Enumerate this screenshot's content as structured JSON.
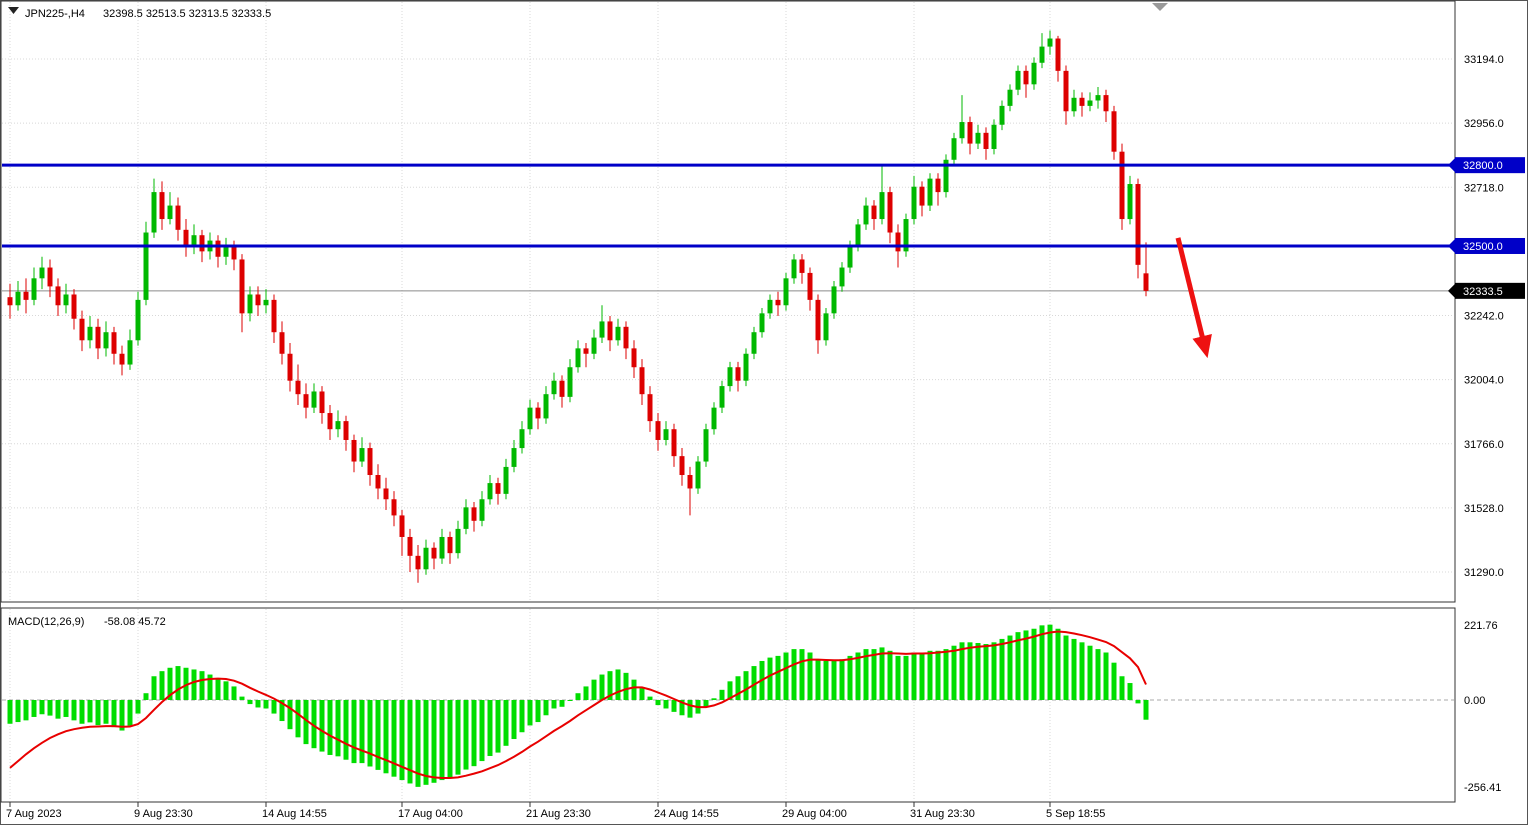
{
  "header": {
    "symbol": "JPN225-,H4",
    "ohlc": "32398.5 32513.5 32313.5 32333.5"
  },
  "macd": {
    "name": "MACD(12,26,9)",
    "values": "-58.08 45.72"
  },
  "colors": {
    "candle_up": "#00b800",
    "candle_down": "#dd0000",
    "macd_histogram": "#00dd00",
    "macd_signal": "#e80000",
    "level_line": "#0000c8",
    "current_price_bg": "#000000",
    "arrow": "#ee1111",
    "grid": "#d8d8d8",
    "current_price_line": "#8a8a8a",
    "shift_marker": "#999999"
  },
  "chart_data": [
    {
      "type": "candlestick",
      "title": "JPN225-,H4",
      "open": "32398.5",
      "high": "32513.5",
      "low": "32313.5",
      "close": "32333.5",
      "y_tick_labels": [
        "33194.0",
        "32956.0",
        "32718.0",
        "32242.0",
        "32004.0",
        "31766.0",
        "31528.0",
        "31290.0"
      ],
      "hlines": [
        {
          "value": 32800.0,
          "label": "32800.0"
        },
        {
          "value": 32500.0,
          "label": "32500.0"
        }
      ],
      "current_price": {
        "value": 32333.5,
        "label": "32333.5"
      },
      "x_labels": [
        {
          "bar": 0,
          "label": "7 Aug 2023"
        },
        {
          "bar": 16,
          "label": "9 Aug 23:30"
        },
        {
          "bar": 32,
          "label": "14 Aug 14:55"
        },
        {
          "bar": 49,
          "label": "17 Aug 04:00"
        },
        {
          "bar": 65,
          "label": "21 Aug 23:30"
        },
        {
          "bar": 81,
          "label": "24 Aug 14:55"
        },
        {
          "bar": 97,
          "label": "29 Aug 04:00"
        },
        {
          "bar": 113,
          "label": "31 Aug 23:30"
        },
        {
          "bar": 130,
          "label": "5 Sep 18:55"
        }
      ],
      "annotation_arrow": {
        "from_bar": 146,
        "from_price": 32530,
        "to_bar": 149.5,
        "to_price": 32107
      },
      "candles": [
        [
          32310,
          32360,
          32230,
          32280
        ],
        [
          32280,
          32370,
          32260,
          32330
        ],
        [
          32330,
          32380,
          32250,
          32300
        ],
        [
          32300,
          32420,
          32280,
          32380
        ],
        [
          32380,
          32460,
          32340,
          32420
        ],
        [
          32420,
          32450,
          32310,
          32350
        ],
        [
          32350,
          32380,
          32240,
          32280
        ],
        [
          32280,
          32360,
          32250,
          32320
        ],
        [
          32320,
          32340,
          32190,
          32230
        ],
        [
          32230,
          32260,
          32110,
          32150
        ],
        [
          32150,
          32240,
          32120,
          32200
        ],
        [
          32200,
          32230,
          32080,
          32120
        ],
        [
          32120,
          32220,
          32090,
          32180
        ],
        [
          32180,
          32200,
          32060,
          32100
        ],
        [
          32100,
          32130,
          32020,
          32060
        ],
        [
          32060,
          32190,
          32040,
          32150
        ],
        [
          32150,
          32330,
          32130,
          32300
        ],
        [
          32300,
          32590,
          32280,
          32550
        ],
        [
          32550,
          32750,
          32530,
          32700
        ],
        [
          32700,
          32740,
          32560,
          32600
        ],
        [
          32600,
          32700,
          32580,
          32650
        ],
        [
          32650,
          32680,
          32520,
          32560
        ],
        [
          32560,
          32600,
          32460,
          32500
        ],
        [
          32500,
          32580,
          32470,
          32540
        ],
        [
          32540,
          32560,
          32440,
          32480
        ],
        [
          32480,
          32550,
          32450,
          32520
        ],
        [
          32520,
          32540,
          32420,
          32460
        ],
        [
          32460,
          32530,
          32430,
          32500
        ],
        [
          32500,
          32520,
          32410,
          32450
        ],
        [
          32450,
          32470,
          32180,
          32250
        ],
        [
          32250,
          32350,
          32220,
          32320
        ],
        [
          32320,
          32350,
          32240,
          32280
        ],
        [
          32280,
          32340,
          32250,
          32300
        ],
        [
          32300,
          32320,
          32140,
          32180
        ],
        [
          32180,
          32220,
          32060,
          32100
        ],
        [
          32100,
          32140,
          31960,
          32000
        ],
        [
          32000,
          32060,
          31910,
          31950
        ],
        [
          31950,
          31990,
          31860,
          31900
        ],
        [
          31900,
          31990,
          31880,
          31960
        ],
        [
          31960,
          31980,
          31840,
          31880
        ],
        [
          31880,
          31910,
          31780,
          31820
        ],
        [
          31820,
          31890,
          31790,
          31850
        ],
        [
          31850,
          31870,
          31740,
          31780
        ],
        [
          31780,
          31800,
          31660,
          31700
        ],
        [
          31700,
          31790,
          31680,
          31750
        ],
        [
          31750,
          31770,
          31610,
          31650
        ],
        [
          31650,
          31690,
          31560,
          31600
        ],
        [
          31600,
          31640,
          31520,
          31560
        ],
        [
          31560,
          31590,
          31460,
          31500
        ],
        [
          31500,
          31520,
          31350,
          31420
        ],
        [
          31420,
          31450,
          31290,
          31350
        ],
        [
          31350,
          31390,
          31250,
          31300
        ],
        [
          31300,
          31410,
          31280,
          31380
        ],
        [
          31380,
          31400,
          31300,
          31340
        ],
        [
          31340,
          31450,
          31320,
          31420
        ],
        [
          31420,
          31440,
          31320,
          31360
        ],
        [
          31360,
          31480,
          31340,
          31450
        ],
        [
          31450,
          31560,
          31430,
          31530
        ],
        [
          31530,
          31550,
          31440,
          31480
        ],
        [
          31480,
          31590,
          31460,
          31560
        ],
        [
          31560,
          31650,
          31540,
          31620
        ],
        [
          31620,
          31640,
          31540,
          31580
        ],
        [
          31580,
          31710,
          31560,
          31680
        ],
        [
          31680,
          31780,
          31660,
          31750
        ],
        [
          31750,
          31850,
          31730,
          31820
        ],
        [
          31820,
          31930,
          31800,
          31900
        ],
        [
          31900,
          31920,
          31820,
          31860
        ],
        [
          31860,
          31980,
          31840,
          31950
        ],
        [
          31950,
          32030,
          31930,
          32000
        ],
        [
          32000,
          32020,
          31900,
          31940
        ],
        [
          31940,
          32080,
          31920,
          32050
        ],
        [
          32050,
          32150,
          32030,
          32120
        ],
        [
          32120,
          32140,
          32050,
          32100
        ],
        [
          32100,
          32190,
          32080,
          32160
        ],
        [
          32160,
          32280,
          32140,
          32220
        ],
        [
          32220,
          32240,
          32110,
          32150
        ],
        [
          32150,
          32230,
          32130,
          32200
        ],
        [
          32200,
          32220,
          32080,
          32120
        ],
        [
          32120,
          32150,
          32010,
          32050
        ],
        [
          32050,
          32080,
          31910,
          31950
        ],
        [
          31950,
          31980,
          31810,
          31850
        ],
        [
          31850,
          31880,
          31740,
          31780
        ],
        [
          31780,
          31850,
          31760,
          31820
        ],
        [
          31820,
          31840,
          31680,
          31720
        ],
        [
          31720,
          31750,
          31610,
          31650
        ],
        [
          31650,
          31680,
          31500,
          31600
        ],
        [
          31600,
          31720,
          31580,
          31700
        ],
        [
          31700,
          31840,
          31680,
          31820
        ],
        [
          31820,
          31920,
          31800,
          31900
        ],
        [
          31900,
          32000,
          31880,
          31980
        ],
        [
          31980,
          32070,
          31960,
          32050
        ],
        [
          32050,
          32070,
          31960,
          32000
        ],
        [
          32000,
          32120,
          31980,
          32100
        ],
        [
          32100,
          32200,
          32080,
          32180
        ],
        [
          32180,
          32270,
          32160,
          32250
        ],
        [
          32250,
          32320,
          32230,
          32300
        ],
        [
          32300,
          32330,
          32240,
          32280
        ],
        [
          32280,
          32400,
          32260,
          32380
        ],
        [
          32380,
          32470,
          32360,
          32450
        ],
        [
          32450,
          32470,
          32360,
          32400
        ],
        [
          32400,
          32420,
          32260,
          32300
        ],
        [
          32300,
          32320,
          32100,
          32150
        ],
        [
          32150,
          32270,
          32130,
          32250
        ],
        [
          32250,
          32370,
          32230,
          32350
        ],
        [
          32350,
          32440,
          32330,
          32420
        ],
        [
          32420,
          32520,
          32400,
          32500
        ],
        [
          32500,
          32600,
          32480,
          32580
        ],
        [
          32580,
          32680,
          32560,
          32650
        ],
        [
          32650,
          32670,
          32560,
          32600
        ],
        [
          32600,
          32800,
          32580,
          32700
        ],
        [
          32700,
          32720,
          32510,
          32550
        ],
        [
          32550,
          32580,
          32420,
          32480
        ],
        [
          32480,
          32620,
          32460,
          32600
        ],
        [
          32600,
          32760,
          32580,
          32720
        ],
        [
          32720,
          32740,
          32610,
          32650
        ],
        [
          32650,
          32770,
          32630,
          32750
        ],
        [
          32750,
          32770,
          32650,
          32700
        ],
        [
          32700,
          32840,
          32680,
          32820
        ],
        [
          32820,
          32920,
          32800,
          32900
        ],
        [
          32900,
          33060,
          32880,
          32960
        ],
        [
          32960,
          32980,
          32840,
          32880
        ],
        [
          32880,
          32950,
          32860,
          32920
        ],
        [
          32920,
          32940,
          32820,
          32860
        ],
        [
          32860,
          32970,
          32840,
          32950
        ],
        [
          32950,
          33040,
          32930,
          33020
        ],
        [
          33020,
          33100,
          33000,
          33080
        ],
        [
          33080,
          33170,
          33060,
          33150
        ],
        [
          33150,
          33170,
          33050,
          33100
        ],
        [
          33100,
          33200,
          33080,
          33180
        ],
        [
          33180,
          33290,
          33160,
          33240
        ],
        [
          33240,
          33300,
          33210,
          33270
        ],
        [
          33270,
          33280,
          33110,
          33150
        ],
        [
          33150,
          33170,
          32950,
          33000
        ],
        [
          33000,
          33080,
          32980,
          33050
        ],
        [
          33050,
          33070,
          32980,
          33020
        ],
        [
          33020,
          33070,
          33000,
          33040
        ],
        [
          33040,
          33090,
          33010,
          33060
        ],
        [
          33060,
          33080,
          32960,
          33000
        ],
        [
          33000,
          33020,
          32820,
          32850
        ],
        [
          32850,
          32880,
          32560,
          32600
        ],
        [
          32600,
          32760,
          32580,
          32730
        ],
        [
          32730,
          32750,
          32380,
          32430
        ],
        [
          32398.5,
          32513.5,
          32313.5,
          32333.5
        ]
      ]
    },
    {
      "type": "bar",
      "title": "MACD(12,26,9)",
      "current_values": {
        "macd": -58.08,
        "signal": 45.72
      },
      "y_tick_labels": [
        "221.76",
        "0.00",
        "-256.41"
      ],
      "histogram": [
        -70,
        -65,
        -60,
        -50,
        -42,
        -46,
        -55,
        -50,
        -60,
        -70,
        -66,
        -74,
        -70,
        -80,
        -90,
        -76,
        -40,
        20,
        70,
        85,
        95,
        100,
        95,
        90,
        85,
        75,
        65,
        55,
        40,
        10,
        -12,
        -22,
        -25,
        -40,
        -62,
        -86,
        -110,
        -130,
        -142,
        -152,
        -162,
        -166,
        -176,
        -186,
        -186,
        -196,
        -206,
        -216,
        -226,
        -236,
        -246,
        -256,
        -250,
        -244,
        -236,
        -230,
        -220,
        -205,
        -195,
        -180,
        -165,
        -155,
        -135,
        -115,
        -95,
        -75,
        -65,
        -45,
        -25,
        -20,
        0,
        20,
        40,
        60,
        75,
        85,
        90,
        80,
        60,
        35,
        10,
        -15,
        -25,
        -35,
        -45,
        -52,
        -40,
        -20,
        5,
        30,
        55,
        70,
        85,
        100,
        115,
        125,
        130,
        140,
        150,
        150,
        140,
        120,
        115,
        115,
        120,
        130,
        140,
        150,
        150,
        155,
        145,
        130,
        130,
        140,
        140,
        145,
        145,
        150,
        160,
        170,
        170,
        168,
        165,
        170,
        180,
        190,
        200,
        205,
        210,
        220,
        222,
        210,
        190,
        180,
        170,
        160,
        150,
        140,
        110,
        70,
        50,
        -10,
        -58.08
      ],
      "signal": [
        -200,
        -180,
        -160,
        -142,
        -126,
        -112,
        -101,
        -92,
        -86,
        -82,
        -79,
        -78,
        -77,
        -77,
        -79,
        -78,
        -71,
        -53,
        -29,
        -6,
        14,
        31,
        44,
        53,
        59,
        62,
        63,
        62,
        57,
        48,
        36,
        25,
        15,
        4,
        -9,
        -24,
        -41,
        -59,
        -76,
        -91,
        -105,
        -117,
        -129,
        -140,
        -149,
        -158,
        -168,
        -177,
        -187,
        -197,
        -207,
        -217,
        -224,
        -228,
        -230,
        -230,
        -228,
        -223,
        -217,
        -210,
        -201,
        -192,
        -180,
        -167,
        -153,
        -137,
        -123,
        -107,
        -91,
        -77,
        -62,
        -45,
        -30,
        -15,
        0,
        13,
        24,
        32,
        37,
        37,
        31,
        22,
        13,
        3,
        -7,
        -16,
        -21,
        -21,
        -16,
        -7,
        5,
        18,
        31,
        45,
        59,
        72,
        83,
        94,
        105,
        114,
        119,
        119,
        118,
        117,
        117,
        120,
        124,
        129,
        133,
        137,
        138,
        137,
        136,
        137,
        137,
        138,
        140,
        142,
        145,
        150,
        154,
        157,
        159,
        161,
        165,
        170,
        176,
        181,
        187,
        194,
        199,
        202,
        200,
        196,
        191,
        185,
        178,
        171,
        159,
        141,
        123,
        97,
        45.72
      ]
    }
  ]
}
